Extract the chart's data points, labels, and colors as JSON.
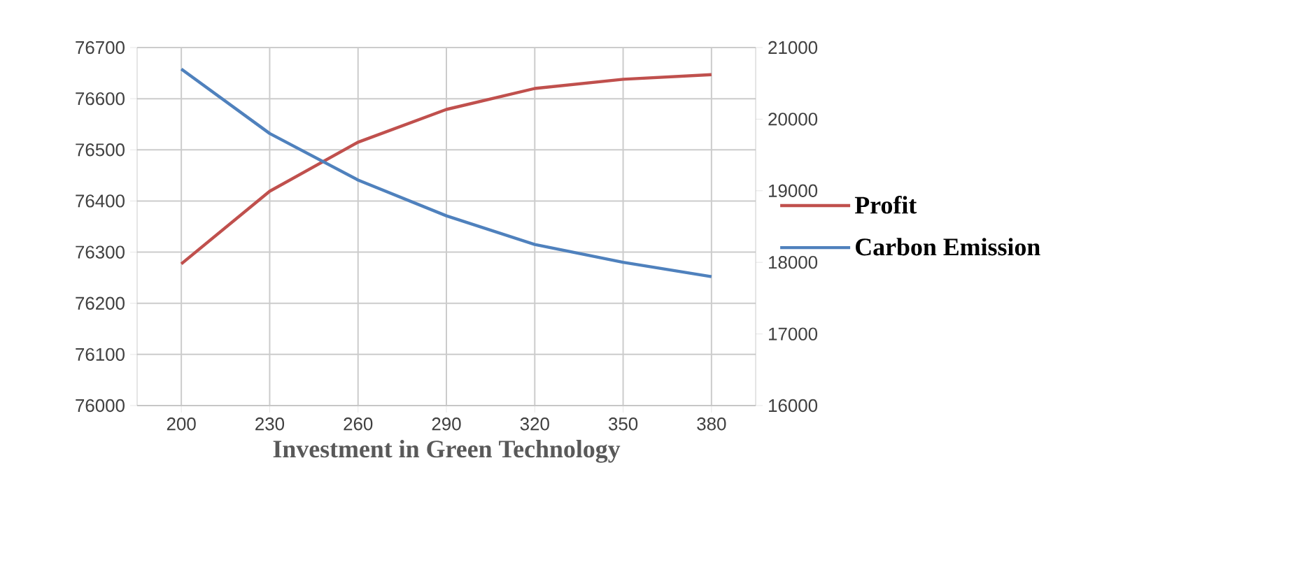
{
  "chart_data": {
    "type": "line",
    "xlabel": "Investment in Green Technology",
    "categories": [
      "200",
      "230",
      "260",
      "290",
      "320",
      "350",
      "380"
    ],
    "series": [
      {
        "name": "Profit",
        "color": "#c0504d",
        "values": [
          76277,
          76419,
          76515,
          76579,
          76620,
          76638,
          76647
        ]
      },
      {
        "name": "Carbon Emission",
        "color": "#4f81bd",
        "axis": "y2",
        "values": [
          20700,
          19800,
          19150,
          18650,
          18250,
          18000,
          17800
        ]
      }
    ],
    "ylim": [
      76000,
      76700
    ],
    "yticks": [
      76000,
      76100,
      76200,
      76300,
      76400,
      76500,
      76600,
      76700
    ],
    "y2lim": [
      16000,
      21000
    ],
    "y2ticks": [
      16000,
      17000,
      18000,
      19000,
      20000,
      21000
    ],
    "grid": true,
    "legend": "right",
    "marker": "none",
    "line_style": "solid"
  }
}
